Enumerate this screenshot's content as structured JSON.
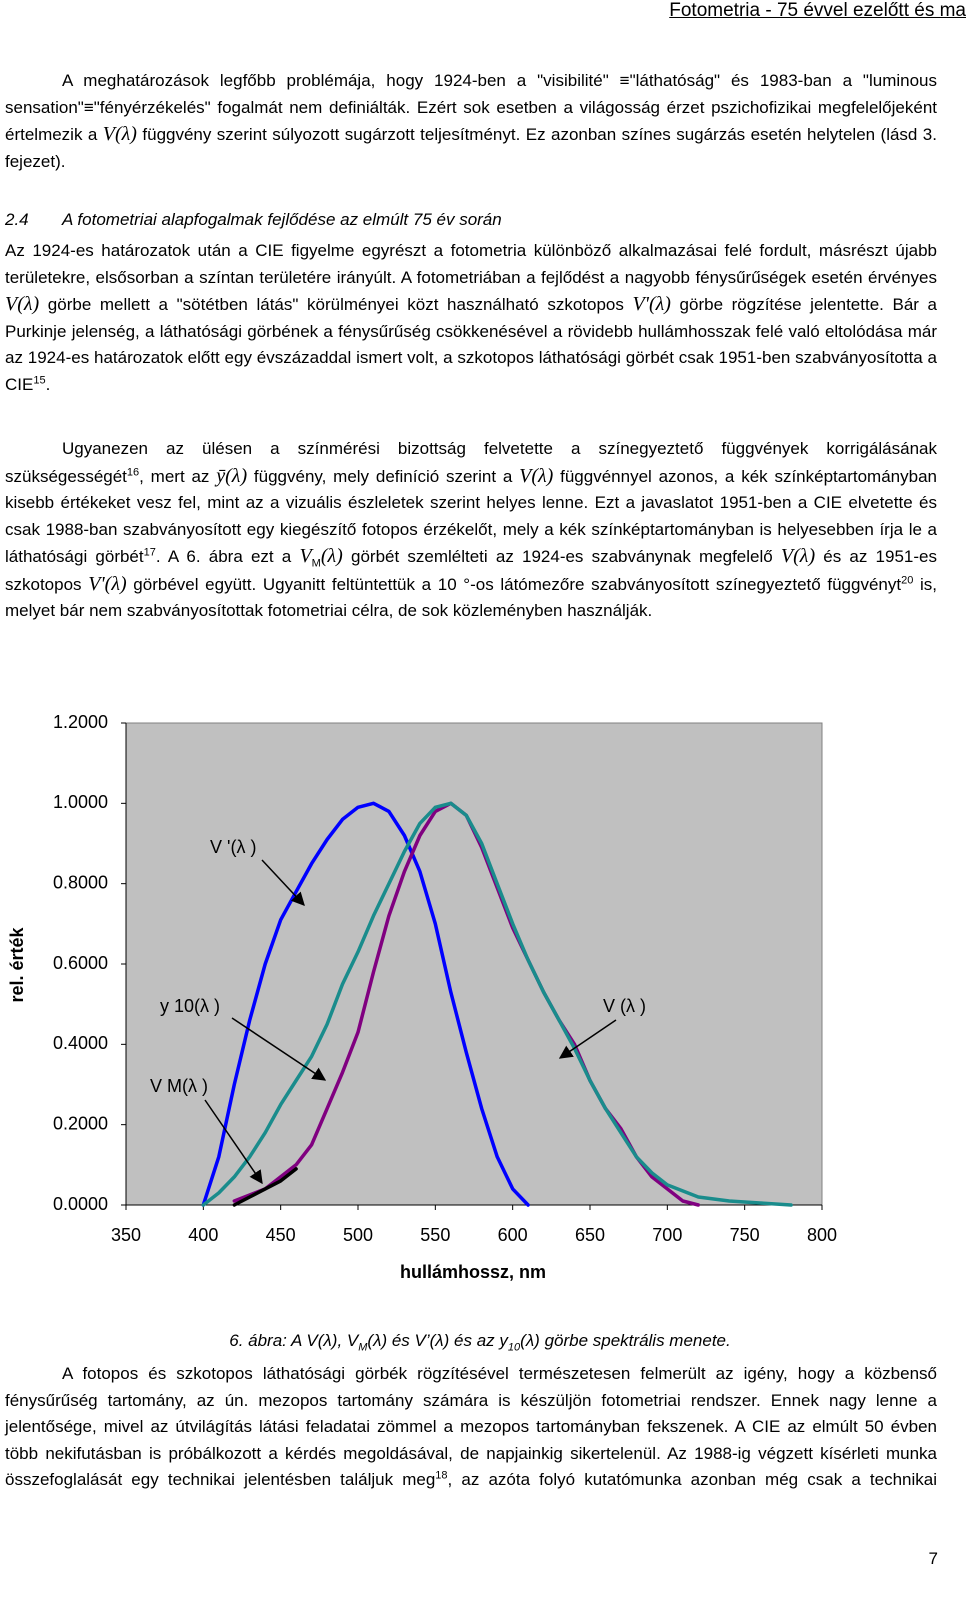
{
  "header": {
    "title": "Fotometria - 75 évvel ezelőtt és ma"
  },
  "paragraphs": [
    [
      {
        "t": "A meghatározások legfőbb problémája, hogy 1924-ben a \"visibilité\" "
      },
      {
        "t": "≡"
      },
      {
        "t": "\"láthatóság\" és 1983-ban a \"luminous sensation\""
      },
      {
        "t": "≡"
      },
      {
        "t": "\"fényérzékelés\" fogalmát nem definiálták. Ezért sok esetben a világosság érzet pszichofizikai megfelelőjeként értelmezik a "
      },
      {
        "m": "V(λ)"
      },
      {
        "t": " függvény szerint súlyozott sugárzott teljesítményt. Ez azonban színes sugárzás esetén helytelen (lásd 3. fejezet)."
      }
    ],
    [
      {
        "t": "Az 1924-es határozatok után a CIE figyelme egyrészt a fotometria különböző alkalmazásai felé fordult, másrészt újabb területekre, elsősorban a színtan területére irányúlt. A fotometriában a fejlődést a nagyobb fénysűrűségek esetén érvényes "
      },
      {
        "m": "V(λ)"
      },
      {
        "t": " görbe mellett a \"sötétben látás\" körülményei közt használható szkotopos "
      },
      {
        "m": "V'(λ)"
      },
      {
        "t": " görbe rögzítése jelentette. Bár a Purkinje jelenség, a láthatósági görbének a fénysűrűség csökkenésével a rövidebb hullámhosszak felé való eltolódása már az 1924-es határozatok előtt egy évszázaddal ismert volt, a szkotopos láthatósági görbét csak 1951-ben szabványosította a CIE"
      },
      {
        "sup": "15"
      },
      {
        "t": "."
      }
    ],
    [
      {
        "t": "Ugyanezen az ülésen a színmérési bizottság felvetette a színegyeztető függvények korrigálásának szükségességét"
      },
      {
        "sup": "16"
      },
      {
        "t": ", mert az "
      },
      {
        "m": "ȳ(λ)"
      },
      {
        "t": " függvény, mely definíció szerint a "
      },
      {
        "m": "V(λ)"
      },
      {
        "t": " függvénnyel azonos, a kék színképtartományban kisebb értékeket vesz fel, mint az a vizuális észleletek szerint helyes lenne. Ezt a javaslatot 1951-ben a CIE elvetette és csak 1988-ban szabványosított egy kiegészítő fotopos érzékelőt, mely a kék színképtartományban is helyesebben írja le a láthatósági görbét"
      },
      {
        "sup": "17"
      },
      {
        "t": ". A 6. ábra ezt a "
      },
      {
        "m": "V"
      },
      {
        "sub": "M"
      },
      {
        "m": "(λ)"
      },
      {
        "t": " görbét szemlélteti az 1924-es szabványnak megfelelő "
      },
      {
        "m": "V(λ)"
      },
      {
        "t": " és az 1951-es szkotopos "
      },
      {
        "m": "V'(λ)"
      },
      {
        "t": " görbével együtt. Ugyanitt feltüntettük a 10 °-os látómezőre szabványosított színegyeztető függvényt"
      },
      {
        "sup": "20"
      },
      {
        "t": " is, melyet bár nem szabványosítottak fotometriai célra, de sok közleményben használják."
      }
    ],
    [
      {
        "t": "A fotopos és szkotopos láthatósági görbék rögzítésével természetesen felmerült az igény, hogy a közbenső fénysűrűség tartomány, az ún. mezopos tartomány számára is készüljön fotometriai rendszer. Ennek nagy lenne a jelentősége, mivel az útvilágítás látási feladatai zömmel a mezopos tartományban fekszenek. A CIE az elmúlt 50 évben több nekifutásban is próbálkozott a kérdés megoldásával, de napjainkig sikertelenül. Az 1988-ig végzett kísérleti munka összefoglalását egy technikai jelentésben találjuk meg"
      },
      {
        "sup": "18"
      },
      {
        "t": ", az azóta folyó kutatómunka azonban még csak a technikai"
      }
    ]
  ],
  "heading": {
    "number": "2.4",
    "title": "A fotometriai alapfogalmak fejlődése az elmúlt 75 év során"
  },
  "caption": [
    {
      "t": "6. ábra: A V(λ), V"
    },
    {
      "sub": "M"
    },
    {
      "t": "(λ) és V’(λ) és az y"
    },
    {
      "sub": "10"
    },
    {
      "t": "(λ)  görbe spektrális menete."
    }
  ],
  "page_number": "7",
  "chart_data": {
    "type": "line",
    "x_label": "hullámhossz, nm",
    "y_label": "rel. érték",
    "xlim": [
      350,
      800
    ],
    "ylim": [
      0,
      1.2
    ],
    "xticks": [
      350,
      400,
      450,
      500,
      550,
      600,
      650,
      700,
      750,
      800
    ],
    "yticks": [
      {
        "value": 0,
        "label": "0.0000"
      },
      {
        "value": 0.2,
        "label": "0.2000"
      },
      {
        "value": 0.4,
        "label": "0.4000"
      },
      {
        "value": 0.6,
        "label": "0.6000"
      },
      {
        "value": 0.8,
        "label": "0.8000"
      },
      {
        "value": 1,
        "label": "1.0000"
      },
      {
        "value": 1.2,
        "label": "1.2000"
      }
    ],
    "background": "#c0c0c0",
    "annotations": [
      "V '(λ )",
      "y 10(λ )",
      "V (λ )",
      "V M(λ )"
    ],
    "series": [
      {
        "color": "#0000ff",
        "x": [
          400,
          410,
          420,
          430,
          440,
          450,
          460,
          470,
          480,
          490,
          500,
          510,
          520,
          530,
          540,
          550,
          560,
          570,
          580,
          590,
          600,
          610
        ],
        "values": [
          0,
          0.12,
          0.3,
          0.46,
          0.6,
          0.71,
          0.78,
          0.85,
          0.91,
          0.96,
          0.99,
          1,
          0.98,
          0.92,
          0.83,
          0.7,
          0.53,
          0.38,
          0.24,
          0.12,
          0.04,
          0
        ]
      },
      {
        "color": "#800080",
        "x": [
          420,
          440,
          460,
          470,
          480,
          490,
          500,
          510,
          520,
          530,
          540,
          550,
          560,
          570,
          580,
          590,
          600,
          610,
          620,
          630,
          640,
          650,
          660,
          670,
          680,
          690,
          700,
          710,
          720
        ],
        "values": [
          0.01,
          0.04,
          0.1,
          0.15,
          0.24,
          0.33,
          0.43,
          0.58,
          0.72,
          0.83,
          0.92,
          0.98,
          1,
          0.97,
          0.89,
          0.79,
          0.69,
          0.61,
          0.53,
          0.46,
          0.4,
          0.31,
          0.24,
          0.19,
          0.12,
          0.07,
          0.04,
          0.01,
          0
        ]
      },
      {
        "color": "#1a8c8c",
        "x": [
          400,
          410,
          420,
          430,
          440,
          450,
          460,
          470,
          480,
          490,
          500,
          510,
          520,
          530,
          540,
          550,
          560,
          570,
          580,
          590,
          600,
          610,
          620,
          630,
          640,
          650,
          660,
          670,
          680,
          690,
          700,
          720,
          740,
          760,
          780
        ],
        "values": [
          0,
          0.03,
          0.07,
          0.12,
          0.18,
          0.25,
          0.31,
          0.37,
          0.45,
          0.55,
          0.63,
          0.72,
          0.8,
          0.88,
          0.95,
          0.99,
          1,
          0.97,
          0.9,
          0.8,
          0.7,
          0.61,
          0.53,
          0.46,
          0.39,
          0.31,
          0.24,
          0.18,
          0.12,
          0.08,
          0.05,
          0.02,
          0.01,
          0.005,
          0
        ]
      },
      {
        "color": "#000000",
        "x": [
          420,
          430,
          440,
          450,
          460
        ],
        "values": [
          0,
          0.02,
          0.04,
          0.06,
          0.09
        ]
      }
    ]
  }
}
